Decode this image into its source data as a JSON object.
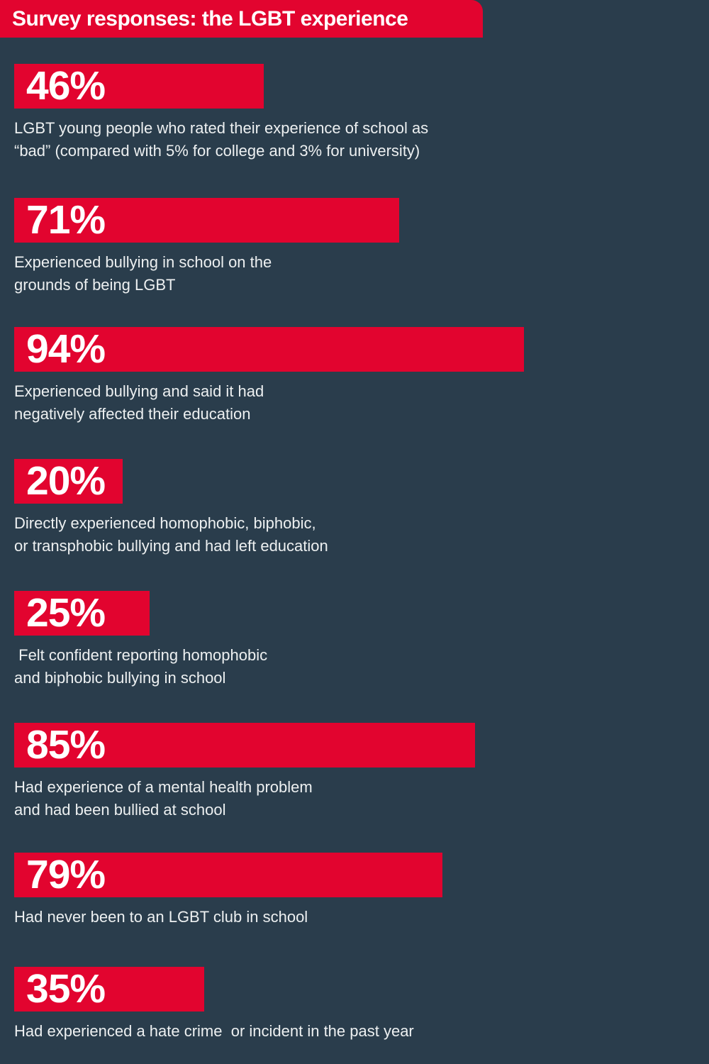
{
  "title": "Survey responses: the LGBT experience",
  "colors": {
    "background": "#2a3d4c",
    "accent_red": "#e2042f",
    "text_white": "#ffffff",
    "caption_text": "#edf0f1"
  },
  "sections": [
    {
      "value_label": "46%",
      "caption": "LGBT young people who rated their experience of school as\n“bad” (compared with 5% for college and 3% for university)"
    },
    {
      "value_label": "71%",
      "caption": "Experienced bullying in school on the\ngrounds of being LGBT"
    },
    {
      "value_label": "94%",
      "caption": "Experienced bullying and said it had\nnegatively affected their education"
    },
    {
      "value_label": "20%",
      "caption": "Directly experienced homophobic, biphobic,\nor transphobic bullying and had left education"
    },
    {
      "value_label": "25%",
      "caption": " Felt confident reporting homophobic\nand biphobic bullying in school"
    },
    {
      "value_label": "85%",
      "caption": "Had experience of a mental health problem\nand had been bullied at school"
    },
    {
      "value_label": "79%",
      "caption": "Had never been to an LGBT club in school"
    },
    {
      "value_label": "35%",
      "caption": "Had experienced a hate crime  or incident in the past year"
    }
  ],
  "chart_data": {
    "type": "bar",
    "orientation": "horizontal",
    "title": "Survey responses: the LGBT experience",
    "unit": "%",
    "xlim": [
      0,
      100
    ],
    "grid": false,
    "legend": false,
    "categories": [
      "LGBT young people who rated their experience of school as “bad” (compared with 5% for college and 3% for university)",
      "Experienced bullying in school on the grounds of being LGBT",
      "Experienced bullying and said it had negatively affected their education",
      "Directly experienced homophobic, biphobic, or transphobic bullying and had left education",
      "Felt confident reporting homophobic and biphobic bullying in school",
      "Had experience of a mental health problem and had been bullied at school",
      "Had never been to an LGBT club in school",
      "Had experienced a hate crime or incident in the past year"
    ],
    "values": [
      46,
      71,
      94,
      20,
      25,
      85,
      79,
      35
    ],
    "annotations": [
      "46%",
      "71%",
      "94%",
      "20%",
      "25%",
      "85%",
      "79%",
      "35%"
    ],
    "bar_color": "#e2042f",
    "background": "#2a3d4c"
  }
}
